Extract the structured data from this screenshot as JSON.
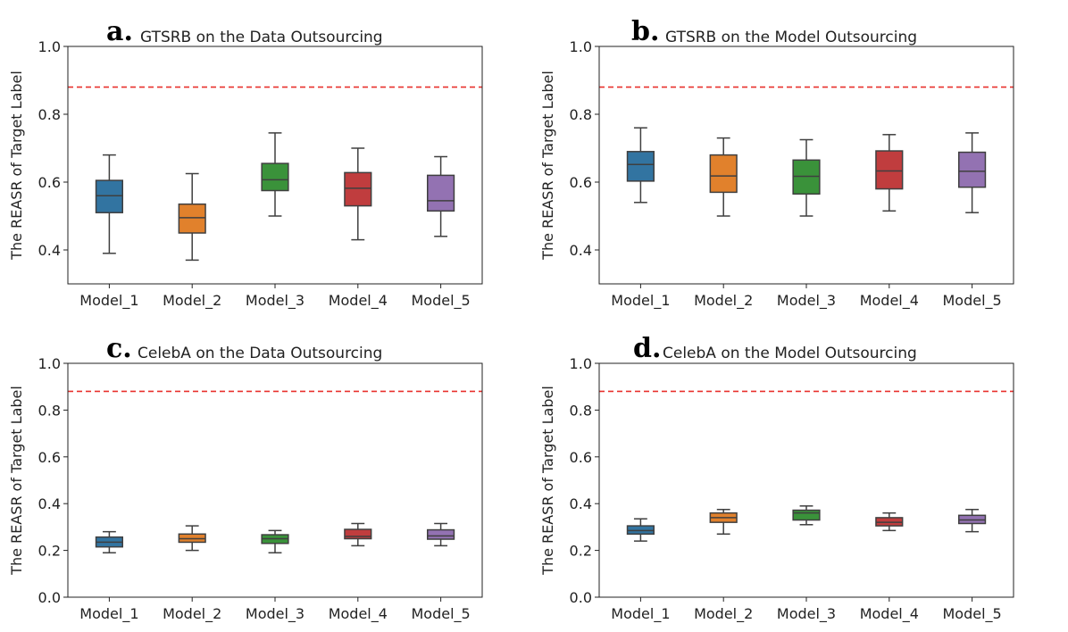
{
  "chart_data": [
    {
      "type": "box",
      "panel_letter": "a.",
      "title": "GTSRB on the Data Outsourcing",
      "ylabel": "The REASR of Target Label",
      "ylim": [
        0.3,
        1.0
      ],
      "yticks": [
        0.4,
        0.6,
        0.8,
        1.0
      ],
      "ytick_labels": [
        "0.4",
        "0.6",
        "0.8",
        "1.0"
      ],
      "reference_line": 0.88,
      "categories": [
        "Model_1",
        "Model_2",
        "Model_3",
        "Model_4",
        "Model_5"
      ],
      "boxes": [
        {
          "min": 0.39,
          "q1": 0.51,
          "median": 0.56,
          "q3": 0.605,
          "max": 0.68
        },
        {
          "min": 0.37,
          "q1": 0.45,
          "median": 0.495,
          "q3": 0.535,
          "max": 0.625
        },
        {
          "min": 0.5,
          "q1": 0.575,
          "median": 0.607,
          "q3": 0.655,
          "max": 0.745
        },
        {
          "min": 0.43,
          "q1": 0.53,
          "median": 0.582,
          "q3": 0.628,
          "max": 0.7
        },
        {
          "min": 0.44,
          "q1": 0.515,
          "median": 0.545,
          "q3": 0.62,
          "max": 0.675
        }
      ]
    },
    {
      "type": "box",
      "panel_letter": "b.",
      "title": "GTSRB on the Model Outsourcing",
      "ylabel": "The REASR of Target Label",
      "ylim": [
        0.3,
        1.0
      ],
      "yticks": [
        0.4,
        0.6,
        0.8,
        1.0
      ],
      "ytick_labels": [
        "0.4",
        "0.6",
        "0.8",
        "1.0"
      ],
      "reference_line": 0.88,
      "categories": [
        "Model_1",
        "Model_2",
        "Model_3",
        "Model_4",
        "Model_5"
      ],
      "boxes": [
        {
          "min": 0.54,
          "q1": 0.603,
          "median": 0.652,
          "q3": 0.69,
          "max": 0.76
        },
        {
          "min": 0.5,
          "q1": 0.57,
          "median": 0.618,
          "q3": 0.68,
          "max": 0.73
        },
        {
          "min": 0.5,
          "q1": 0.565,
          "median": 0.617,
          "q3": 0.665,
          "max": 0.725
        },
        {
          "min": 0.515,
          "q1": 0.58,
          "median": 0.633,
          "q3": 0.692,
          "max": 0.74
        },
        {
          "min": 0.51,
          "q1": 0.585,
          "median": 0.632,
          "q3": 0.688,
          "max": 0.745
        }
      ]
    },
    {
      "type": "box",
      "panel_letter": "c.",
      "title": "CelebA on the Data Outsourcing",
      "ylabel": "The REASR of Target Label",
      "ylim": [
        0.0,
        1.0
      ],
      "yticks": [
        0.0,
        0.2,
        0.4,
        0.6,
        0.8,
        1.0
      ],
      "ytick_labels": [
        "0.0",
        "0.2",
        "0.4",
        "0.6",
        "0.8",
        "1.0"
      ],
      "reference_line": 0.88,
      "categories": [
        "Model_1",
        "Model_2",
        "Model_3",
        "Model_4",
        "Model_5"
      ],
      "boxes": [
        {
          "min": 0.19,
          "q1": 0.215,
          "median": 0.235,
          "q3": 0.257,
          "max": 0.28
        },
        {
          "min": 0.2,
          "q1": 0.235,
          "median": 0.25,
          "q3": 0.27,
          "max": 0.305
        },
        {
          "min": 0.19,
          "q1": 0.23,
          "median": 0.25,
          "q3": 0.267,
          "max": 0.285
        },
        {
          "min": 0.22,
          "q1": 0.25,
          "median": 0.26,
          "q3": 0.29,
          "max": 0.315
        },
        {
          "min": 0.22,
          "q1": 0.248,
          "median": 0.262,
          "q3": 0.288,
          "max": 0.315
        }
      ]
    },
    {
      "type": "box",
      "panel_letter": "d.",
      "title": "CelebA on the Model Outsourcing",
      "ylabel": "The REASR of Target Label",
      "ylim": [
        0.0,
        1.0
      ],
      "yticks": [
        0.0,
        0.2,
        0.4,
        0.6,
        0.8,
        1.0
      ],
      "ytick_labels": [
        "0.0",
        "0.2",
        "0.4",
        "0.6",
        "0.8",
        "1.0"
      ],
      "reference_line": 0.88,
      "categories": [
        "Model_1",
        "Model_2",
        "Model_3",
        "Model_4",
        "Model_5"
      ],
      "boxes": [
        {
          "min": 0.24,
          "q1": 0.27,
          "median": 0.285,
          "q3": 0.305,
          "max": 0.335
        },
        {
          "min": 0.27,
          "q1": 0.32,
          "median": 0.34,
          "q3": 0.36,
          "max": 0.375
        },
        {
          "min": 0.31,
          "q1": 0.33,
          "median": 0.36,
          "q3": 0.372,
          "max": 0.39
        },
        {
          "min": 0.285,
          "q1": 0.305,
          "median": 0.32,
          "q3": 0.34,
          "max": 0.36
        },
        {
          "min": 0.28,
          "q1": 0.315,
          "median": 0.33,
          "q3": 0.35,
          "max": 0.375
        }
      ]
    }
  ],
  "colors": {
    "series": [
      "#3274a1",
      "#e1812c",
      "#3a923a",
      "#c03d3e",
      "#9372b2"
    ],
    "reference_line": "#e8312d",
    "outline": "#3f3f3f",
    "axis": "#222222"
  }
}
